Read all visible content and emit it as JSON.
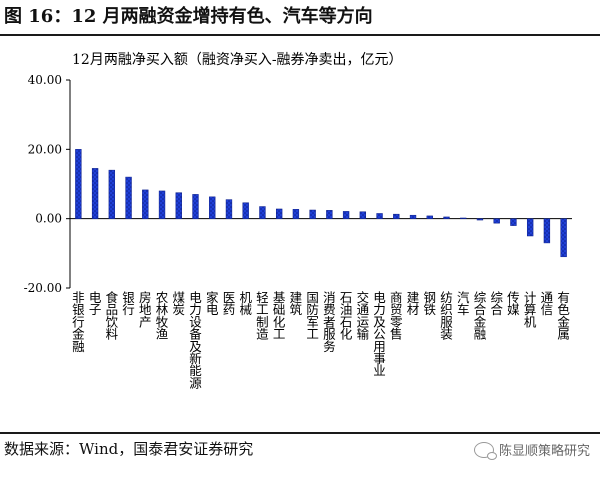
{
  "header": {
    "figure_title": "图 16：12 月两融资金增持有色、汽车等方向"
  },
  "footer": {
    "source": "数据来源：Wind，国泰君安证券研究",
    "watermark": "陈显顺策略研究"
  },
  "colors": {
    "bar": "#1f3fd6",
    "bar_dark": "#0b1e8a",
    "axis": "#000000"
  },
  "chart_data": {
    "type": "bar",
    "title": "12月两融净买入额（融资净买入-融券净卖出，亿元）",
    "categories": [
      "非银行金融",
      "电子",
      "食品饮料",
      "银行",
      "房地产",
      "农林牧渔",
      "煤炭",
      "电力设备及新能源",
      "家电",
      "医药",
      "机械",
      "轻工制造",
      "基础化工",
      "建筑",
      "国防军工",
      "消费者服务",
      "石油石化",
      "交通运输",
      "电力及公用事业",
      "商贸零售",
      "建材",
      "钢铁",
      "纺织服装",
      "汽车",
      "综合金融",
      "综合",
      "传媒",
      "计算机",
      "通信",
      "有色金属"
    ],
    "values": [
      20.0,
      14.5,
      14.0,
      12.0,
      8.3,
      8.0,
      7.5,
      7.0,
      6.3,
      5.5,
      4.6,
      3.5,
      2.8,
      2.7,
      2.5,
      2.4,
      2.1,
      2.0,
      1.5,
      1.3,
      1.0,
      0.8,
      0.5,
      0.2,
      -0.4,
      -1.3,
      -2.0,
      -5.0,
      -7.0,
      -11.0
    ],
    "ylim": [
      -20,
      40
    ],
    "yticks": [
      "40.00",
      "20.00",
      "0.00",
      "-20.00"
    ],
    "ytick_values": [
      40,
      20,
      0,
      -20
    ]
  }
}
